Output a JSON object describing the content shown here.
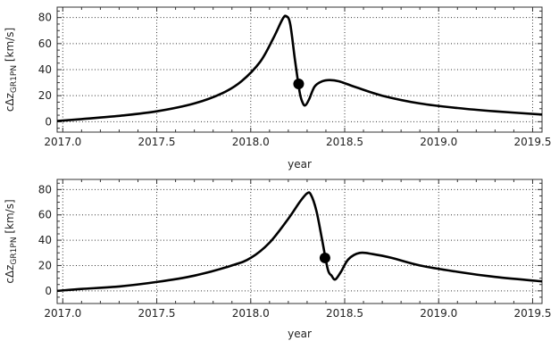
{
  "chart_data": [
    {
      "type": "line",
      "ylabel_prefix": "cΔz",
      "ylabel_sub": "GR1PN",
      "ylabel_suffix": " [km/s]",
      "xlabel": "year",
      "xlim": [
        2016.97,
        2019.55
      ],
      "ylim": [
        -8,
        88
      ],
      "xticks": [
        2017.0,
        2017.5,
        2018.0,
        2018.5,
        2019.0,
        2019.5
      ],
      "xtick_labels": [
        "2017.0",
        "2017.5",
        "2018.0",
        "2018.5",
        "2019.0",
        "2019.5"
      ],
      "yticks": [
        0,
        20,
        40,
        60,
        80
      ],
      "ytick_labels": [
        "0",
        "20",
        "40",
        "60",
        "80"
      ],
      "grid": true,
      "series": [
        {
          "color": "#000000",
          "x": [
            2016.97,
            2017.1,
            2017.3,
            2017.5,
            2017.7,
            2017.85,
            2017.95,
            2018.05,
            2018.12,
            2018.17,
            2018.19,
            2018.21,
            2018.235,
            2018.26,
            2018.275,
            2018.29,
            2018.31,
            2018.34,
            2018.38,
            2018.42,
            2018.47,
            2018.55,
            2018.7,
            2018.9,
            2019.1,
            2019.3,
            2019.55
          ],
          "y": [
            0.5,
            2,
            4.5,
            8,
            14,
            22,
            31,
            46,
            64,
            79,
            81,
            75,
            48,
            23,
            15,
            12.5,
            17,
            27,
            31,
            32,
            31,
            27,
            20,
            14,
            10.5,
            8,
            5.5
          ]
        }
      ],
      "marker": {
        "x": 2018.255,
        "y": 29
      }
    },
    {
      "type": "line",
      "ylabel_prefix": "cΔz",
      "ylabel_sub": "GR1PN",
      "ylabel_suffix": " [km/s]",
      "xlabel": "year",
      "xlim": [
        2016.97,
        2019.55
      ],
      "ylim": [
        -10,
        88
      ],
      "xticks": [
        2017.0,
        2017.5,
        2018.0,
        2018.5,
        2019.0,
        2019.5
      ],
      "xtick_labels": [
        "2017.0",
        "2017.5",
        "2018.0",
        "2018.5",
        "2019.0",
        "2019.5"
      ],
      "yticks": [
        0,
        20,
        40,
        60,
        80
      ],
      "ytick_labels": [
        "0",
        "20",
        "40",
        "60",
        "80"
      ],
      "grid": true,
      "series": [
        {
          "color": "#000000",
          "x": [
            2016.97,
            2017.1,
            2017.3,
            2017.5,
            2017.7,
            2017.9,
            2018.0,
            2018.1,
            2018.2,
            2018.26,
            2018.3,
            2018.32,
            2018.35,
            2018.38,
            2018.41,
            2018.43,
            2018.45,
            2018.48,
            2018.52,
            2018.58,
            2018.65,
            2018.75,
            2018.9,
            2019.1,
            2019.3,
            2019.55
          ],
          "y": [
            0,
            1.5,
            3.5,
            7,
            12,
            20,
            26,
            38,
            57,
            70,
            77,
            76,
            63,
            40,
            17,
            12,
            9,
            15,
            25,
            30,
            29,
            26,
            20,
            15,
            11,
            7.5
          ]
        }
      ],
      "marker": {
        "x": 2018.395,
        "y": 26
      }
    }
  ]
}
